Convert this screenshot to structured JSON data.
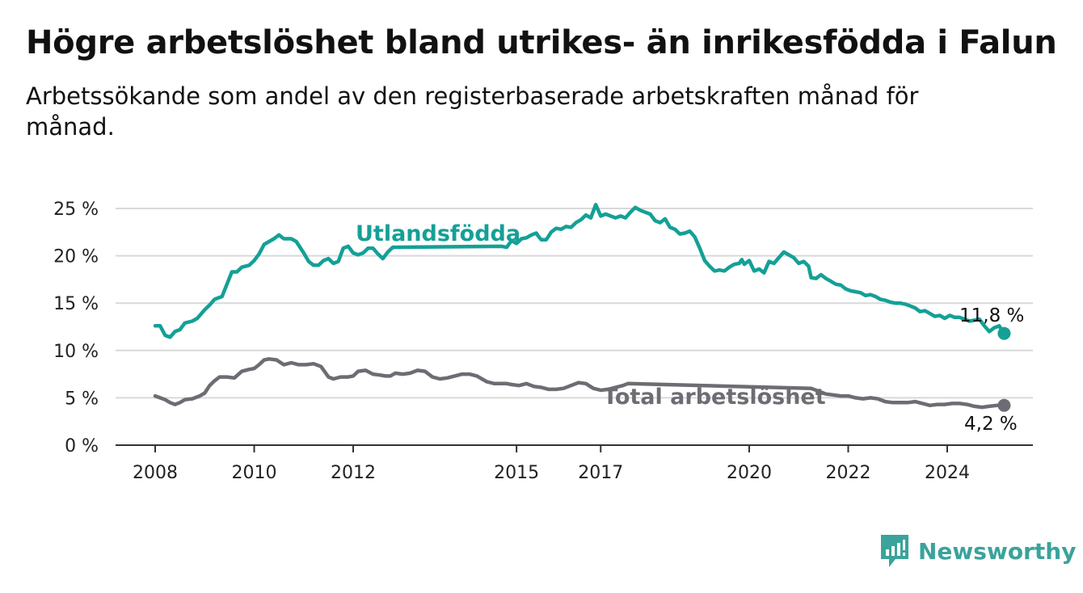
{
  "title": "Högre arbetslöshet bland utrikes- än inrikesfödda i Falun",
  "subtitle": "Arbetssökande som andel av den registerbaserade arbetskraften månad för månad.",
  "brand": {
    "name": "Newsworthy"
  },
  "chart_data": {
    "type": "line",
    "title": "Högre arbetslöshet bland utrikes- än inrikesfödda i Falun",
    "subtitle": "Arbetssökande som andel av den registerbaserade arbetskraften månad för månad.",
    "ylim": [
      0,
      25
    ],
    "yticks": [
      0,
      5,
      10,
      15,
      20,
      25
    ],
    "ytick_labels": [
      "0 %",
      "5 %",
      "10 %",
      "15 %",
      "20 %",
      "25 %"
    ],
    "xtick_labels": [
      "2008",
      "2010",
      "2012",
      "2015",
      "2017",
      "2020",
      "2022",
      "2024"
    ],
    "xtick_positions": [
      2008.0,
      2010.0,
      2012.0,
      2015.3,
      2017.0,
      2020.0,
      2022.0,
      2024.0
    ],
    "grid": true,
    "series": [
      {
        "name": "Utlandsfödda",
        "color": "#14a096",
        "end_label": "11,8 %",
        "points": [
          [
            2008.0,
            12.6
          ],
          [
            2008.1,
            12.6
          ],
          [
            2008.2,
            11.6
          ],
          [
            2008.3,
            11.4
          ],
          [
            2008.4,
            12.0
          ],
          [
            2008.5,
            12.2
          ],
          [
            2008.6,
            12.9
          ],
          [
            2008.75,
            13.1
          ],
          [
            2008.85,
            13.4
          ],
          [
            2009.0,
            14.3
          ],
          [
            2009.1,
            14.8
          ],
          [
            2009.2,
            15.4
          ],
          [
            2009.35,
            15.7
          ],
          [
            2009.45,
            17.0
          ],
          [
            2009.55,
            18.3
          ],
          [
            2009.65,
            18.3
          ],
          [
            2009.75,
            18.8
          ],
          [
            2009.9,
            19.0
          ],
          [
            2010.0,
            19.5
          ],
          [
            2010.1,
            20.2
          ],
          [
            2010.2,
            21.2
          ],
          [
            2010.3,
            21.5
          ],
          [
            2010.4,
            21.8
          ],
          [
            2010.5,
            22.2
          ],
          [
            2010.6,
            21.8
          ],
          [
            2010.75,
            21.8
          ],
          [
            2010.85,
            21.5
          ],
          [
            2011.0,
            20.3
          ],
          [
            2011.1,
            19.4
          ],
          [
            2011.2,
            19.0
          ],
          [
            2011.3,
            19.0
          ],
          [
            2011.4,
            19.5
          ],
          [
            2011.5,
            19.7
          ],
          [
            2011.6,
            19.2
          ],
          [
            2011.7,
            19.4
          ],
          [
            2011.8,
            20.8
          ],
          [
            2011.9,
            21.0
          ],
          [
            2012.0,
            20.3
          ],
          [
            2012.1,
            20.1
          ],
          [
            2012.2,
            20.3
          ],
          [
            2012.3,
            20.8
          ],
          [
            2012.4,
            20.8
          ],
          [
            2012.5,
            20.2
          ],
          [
            2012.6,
            19.7
          ],
          [
            2012.7,
            20.4
          ],
          [
            2012.8,
            20.9
          ],
          [
            2015.0,
            21.0
          ],
          [
            2015.1,
            20.9
          ],
          [
            2015.2,
            21.6
          ],
          [
            2015.3,
            21.3
          ],
          [
            2015.4,
            21.8
          ],
          [
            2015.5,
            21.9
          ],
          [
            2015.6,
            22.2
          ],
          [
            2015.7,
            22.4
          ],
          [
            2015.75,
            22.0
          ],
          [
            2015.8,
            21.7
          ],
          [
            2015.9,
            21.7
          ],
          [
            2016.0,
            22.5
          ],
          [
            2016.1,
            22.9
          ],
          [
            2016.2,
            22.8
          ],
          [
            2016.3,
            23.1
          ],
          [
            2016.4,
            23.0
          ],
          [
            2016.5,
            23.5
          ],
          [
            2016.6,
            23.8
          ],
          [
            2016.7,
            24.3
          ],
          [
            2016.8,
            24.0
          ],
          [
            2016.9,
            25.4
          ],
          [
            2017.0,
            24.2
          ],
          [
            2017.1,
            24.4
          ],
          [
            2017.2,
            24.2
          ],
          [
            2017.3,
            24.0
          ],
          [
            2017.4,
            24.2
          ],
          [
            2017.5,
            24.0
          ],
          [
            2017.6,
            24.6
          ],
          [
            2017.7,
            25.1
          ],
          [
            2017.8,
            24.8
          ],
          [
            2017.9,
            24.6
          ],
          [
            2018.0,
            24.4
          ],
          [
            2018.1,
            23.7
          ],
          [
            2018.2,
            23.5
          ],
          [
            2018.3,
            23.9
          ],
          [
            2018.4,
            23.0
          ],
          [
            2018.5,
            22.8
          ],
          [
            2018.6,
            22.3
          ],
          [
            2018.7,
            22.4
          ],
          [
            2018.8,
            22.6
          ],
          [
            2018.9,
            22.0
          ],
          [
            2019.0,
            20.8
          ],
          [
            2019.1,
            19.5
          ],
          [
            2019.2,
            18.9
          ],
          [
            2019.3,
            18.4
          ],
          [
            2019.4,
            18.5
          ],
          [
            2019.5,
            18.4
          ],
          [
            2019.6,
            18.8
          ],
          [
            2019.7,
            19.1
          ],
          [
            2019.8,
            19.2
          ],
          [
            2019.85,
            19.6
          ],
          [
            2019.9,
            19.1
          ],
          [
            2020.0,
            19.5
          ],
          [
            2020.1,
            18.4
          ],
          [
            2020.2,
            18.6
          ],
          [
            2020.3,
            18.2
          ],
          [
            2020.4,
            19.4
          ],
          [
            2020.5,
            19.2
          ],
          [
            2020.6,
            19.8
          ],
          [
            2020.7,
            20.4
          ],
          [
            2020.8,
            20.1
          ],
          [
            2020.9,
            19.8
          ],
          [
            2021.0,
            19.2
          ],
          [
            2021.1,
            19.4
          ],
          [
            2021.2,
            18.9
          ],
          [
            2021.25,
            17.7
          ],
          [
            2021.35,
            17.6
          ],
          [
            2021.45,
            18.0
          ],
          [
            2021.55,
            17.6
          ],
          [
            2021.65,
            17.3
          ],
          [
            2021.75,
            17.0
          ],
          [
            2021.85,
            16.9
          ],
          [
            2021.95,
            16.5
          ],
          [
            2022.05,
            16.3
          ],
          [
            2022.15,
            16.2
          ],
          [
            2022.25,
            16.1
          ],
          [
            2022.35,
            15.8
          ],
          [
            2022.45,
            15.9
          ],
          [
            2022.55,
            15.7
          ],
          [
            2022.65,
            15.4
          ],
          [
            2022.75,
            15.3
          ],
          [
            2022.85,
            15.1
          ],
          [
            2022.95,
            15.0
          ],
          [
            2023.05,
            15.0
          ],
          [
            2023.15,
            14.9
          ],
          [
            2023.25,
            14.7
          ],
          [
            2023.35,
            14.5
          ],
          [
            2023.45,
            14.1
          ],
          [
            2023.55,
            14.2
          ],
          [
            2023.65,
            13.9
          ],
          [
            2023.75,
            13.6
          ],
          [
            2023.85,
            13.7
          ],
          [
            2023.95,
            13.4
          ],
          [
            2024.05,
            13.7
          ],
          [
            2024.15,
            13.5
          ],
          [
            2024.25,
            13.5
          ],
          [
            2024.35,
            13.3
          ],
          [
            2024.45,
            13.1
          ],
          [
            2024.55,
            13.2
          ],
          [
            2024.65,
            13.3
          ],
          [
            2024.75,
            12.6
          ],
          [
            2024.85,
            12.0
          ],
          [
            2024.95,
            12.4
          ],
          [
            2025.05,
            12.6
          ],
          [
            2025.15,
            11.8
          ]
        ]
      },
      {
        "name": "Total arbetslöshet",
        "color": "#6e6c73",
        "end_label": "4,2 %",
        "points": [
          [
            2008.0,
            5.2
          ],
          [
            2008.1,
            5.0
          ],
          [
            2008.2,
            4.8
          ],
          [
            2008.3,
            4.5
          ],
          [
            2008.4,
            4.3
          ],
          [
            2008.5,
            4.5
          ],
          [
            2008.6,
            4.8
          ],
          [
            2008.75,
            4.9
          ],
          [
            2008.9,
            5.2
          ],
          [
            2009.0,
            5.5
          ],
          [
            2009.1,
            6.3
          ],
          [
            2009.2,
            6.8
          ],
          [
            2009.3,
            7.2
          ],
          [
            2009.45,
            7.2
          ],
          [
            2009.6,
            7.1
          ],
          [
            2009.75,
            7.8
          ],
          [
            2009.9,
            8.0
          ],
          [
            2010.0,
            8.1
          ],
          [
            2010.1,
            8.5
          ],
          [
            2010.2,
            9.0
          ],
          [
            2010.3,
            9.1
          ],
          [
            2010.45,
            9.0
          ],
          [
            2010.6,
            8.5
          ],
          [
            2010.75,
            8.7
          ],
          [
            2010.9,
            8.5
          ],
          [
            2011.05,
            8.5
          ],
          [
            2011.2,
            8.6
          ],
          [
            2011.35,
            8.3
          ],
          [
            2011.5,
            7.2
          ],
          [
            2011.6,
            7.0
          ],
          [
            2011.75,
            7.2
          ],
          [
            2011.9,
            7.2
          ],
          [
            2012.0,
            7.3
          ],
          [
            2012.1,
            7.8
          ],
          [
            2012.25,
            7.9
          ],
          [
            2012.4,
            7.5
          ],
          [
            2012.55,
            7.4
          ],
          [
            2012.65,
            7.3
          ],
          [
            2012.75,
            7.3
          ],
          [
            2012.85,
            7.6
          ],
          [
            2013.0,
            7.5
          ],
          [
            2013.15,
            7.6
          ],
          [
            2013.3,
            7.9
          ],
          [
            2013.45,
            7.8
          ],
          [
            2013.6,
            7.2
          ],
          [
            2013.75,
            7.0
          ],
          [
            2013.9,
            7.1
          ],
          [
            2014.05,
            7.3
          ],
          [
            2014.2,
            7.5
          ],
          [
            2014.35,
            7.5
          ],
          [
            2014.5,
            7.3
          ],
          [
            2014.6,
            7.0
          ],
          [
            2014.7,
            6.7
          ],
          [
            2014.85,
            6.5
          ],
          [
            2015.0,
            6.5
          ],
          [
            2015.1,
            6.5
          ],
          [
            2015.2,
            6.4
          ],
          [
            2015.35,
            6.3
          ],
          [
            2015.5,
            6.5
          ],
          [
            2015.65,
            6.2
          ],
          [
            2015.8,
            6.1
          ],
          [
            2015.95,
            5.9
          ],
          [
            2016.1,
            5.9
          ],
          [
            2016.25,
            6.0
          ],
          [
            2016.4,
            6.3
          ],
          [
            2016.55,
            6.6
          ],
          [
            2016.7,
            6.5
          ],
          [
            2016.85,
            6.0
          ],
          [
            2017.0,
            5.8
          ],
          [
            2017.15,
            5.9
          ],
          [
            2017.3,
            6.1
          ],
          [
            2017.45,
            6.3
          ],
          [
            2017.55,
            6.5
          ],
          [
            2021.25,
            6.0
          ],
          [
            2021.4,
            5.7
          ],
          [
            2021.55,
            5.4
          ],
          [
            2021.7,
            5.3
          ],
          [
            2021.85,
            5.2
          ],
          [
            2022.0,
            5.2
          ],
          [
            2022.15,
            5.0
          ],
          [
            2022.3,
            4.9
          ],
          [
            2022.45,
            5.0
          ],
          [
            2022.6,
            4.9
          ],
          [
            2022.75,
            4.6
          ],
          [
            2022.9,
            4.5
          ],
          [
            2023.05,
            4.5
          ],
          [
            2023.2,
            4.5
          ],
          [
            2023.35,
            4.6
          ],
          [
            2023.5,
            4.4
          ],
          [
            2023.65,
            4.2
          ],
          [
            2023.8,
            4.3
          ],
          [
            2023.95,
            4.3
          ],
          [
            2024.1,
            4.4
          ],
          [
            2024.25,
            4.4
          ],
          [
            2024.4,
            4.3
          ],
          [
            2024.55,
            4.1
          ],
          [
            2024.7,
            4.0
          ],
          [
            2024.85,
            4.1
          ],
          [
            2025.0,
            4.2
          ],
          [
            2025.15,
            4.2
          ]
        ]
      }
    ]
  }
}
